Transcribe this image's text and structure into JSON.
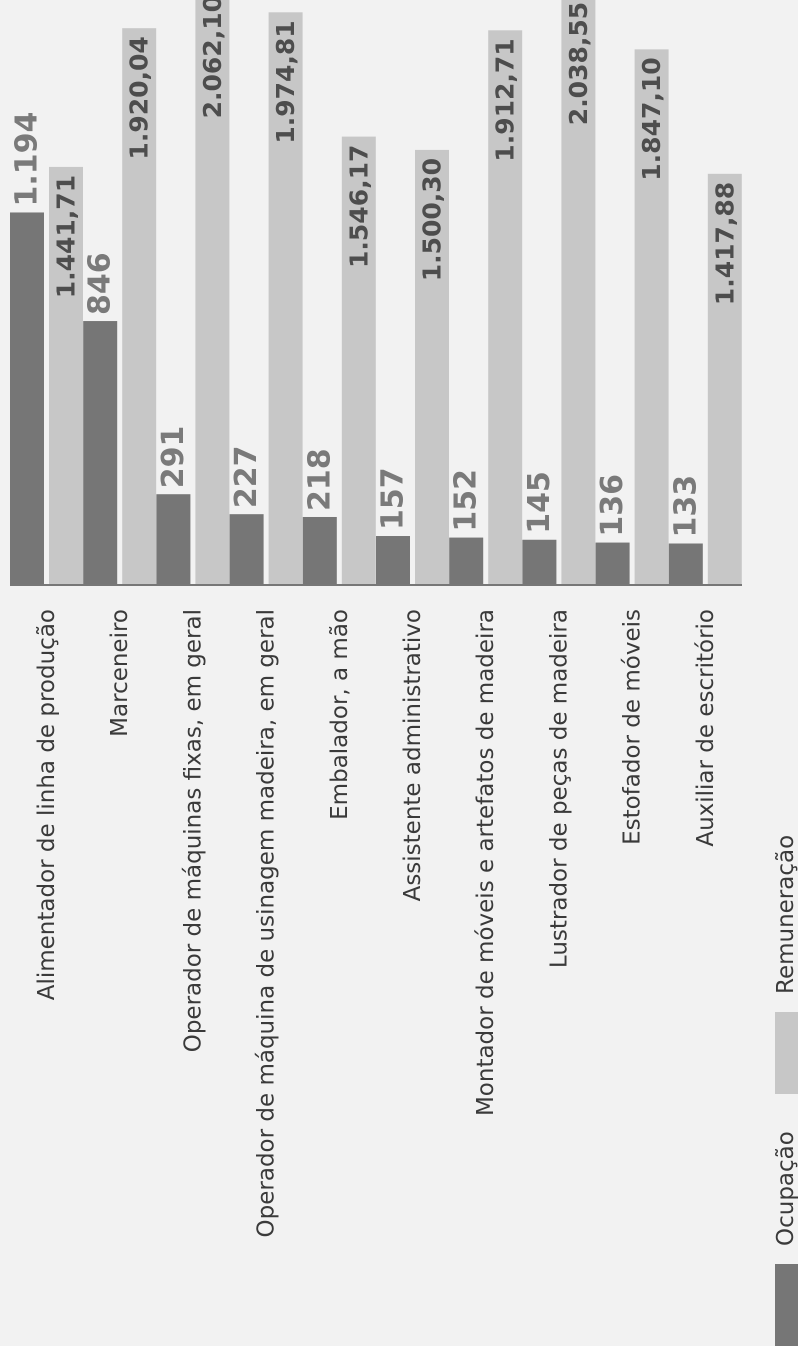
{
  "chart_data": {
    "type": "bar",
    "orientation": "rotated",
    "categories": [
      "Alimentador de linha de produção",
      "Marceneiro",
      "Operador de máquinas fixas, em geral",
      "Operador de máquina de usinagem madeira, em geral",
      "Embalador, a mão",
      "Assistente administrativo",
      "Montador de móveis e artefatos de madeira",
      "Lustrador de peças de madeira",
      "Estofador de móveis",
      "Auxiliar de escritório"
    ],
    "series": [
      {
        "name": "Ocupação",
        "color": "#767676",
        "values": [
          1194,
          846,
          291,
          227,
          218,
          157,
          152,
          145,
          136,
          133
        ],
        "labels": [
          "1.194",
          "846",
          "291",
          "227",
          "218",
          "157",
          "152",
          "145",
          "136",
          "133"
        ]
      },
      {
        "name": "Remuneração",
        "color": "#c7c7c7",
        "values": [
          1441.71,
          1920.04,
          2062.1,
          1974.81,
          1546.17,
          1500.3,
          1912.71,
          2038.55,
          1847.1,
          1417.88
        ],
        "labels": [
          "1.441,71",
          "1.920,04",
          "2.062,10",
          "1.974,81",
          "1.546,17",
          "1.500,30",
          "1.912,71",
          "2.038,55",
          "1.847,10",
          "1.417,88"
        ]
      }
    ],
    "legend_position": "bottom",
    "grid": false
  }
}
